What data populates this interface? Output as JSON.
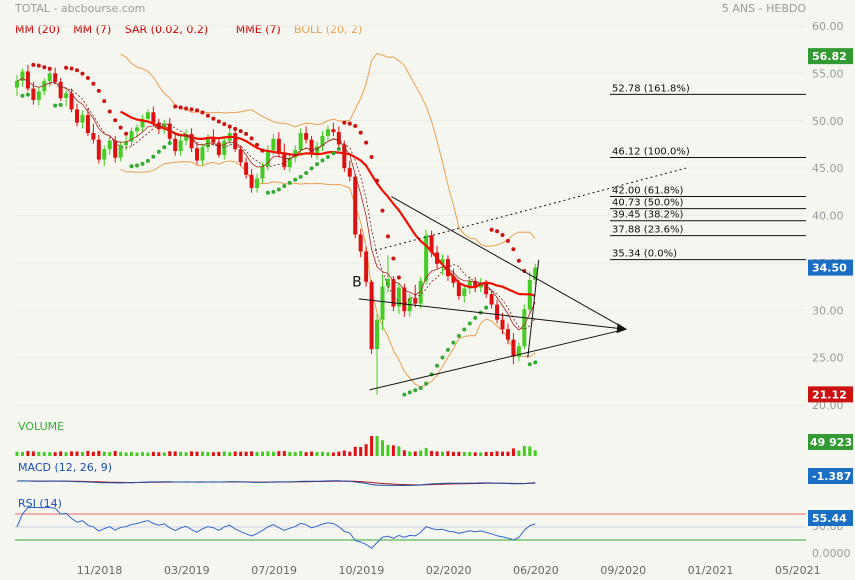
{
  "header": {
    "title": "TOTAL - abcbourse.com",
    "period": "5 ANS - HEBDO",
    "indicators": [
      {
        "label": "MM (20)",
        "color": "#cc0000"
      },
      {
        "label": "MM (7)",
        "color": "#cc0000"
      },
      {
        "label": "SAR (0.02, 0.2)",
        "color": "#cc0000"
      },
      {
        "label": "MME (7)",
        "color": "#cc0000"
      },
      {
        "label": "BOLL (20, 2)",
        "color": "#e8a050"
      }
    ]
  },
  "colors": {
    "background": "#f6f6f1",
    "up": "#44cc22",
    "down": "#dd1111",
    "ma": "#ee1100",
    "boll": "#e8a050",
    "sar_up": "#33aa33",
    "sar_down": "#cc1111",
    "price_badge": "#339933",
    "last_badge": "#1a6fc4",
    "low_badge": "#cc1111",
    "macd_line": "#1a4fb0",
    "macd_signal": "#b01a1a",
    "rsi_line": "#3366cc",
    "rsi_high": "#ee6666",
    "rsi_low": "#33aa33"
  },
  "chart_data": [
    {
      "type": "candlestick",
      "panel": "price",
      "ylim": [
        20,
        60
      ],
      "y_ticks": [
        "60.00",
        "55.00",
        "50.00",
        "45.00",
        "40.00",
        "35.00",
        "30.00",
        "25.00",
        "20.00"
      ],
      "x_ticks": [
        "11/2018",
        "03/2019",
        "07/2019",
        "10/2019",
        "02/2020",
        "06/2020",
        "09/2020",
        "01/2021",
        "05/2021"
      ],
      "xlim_weeks": [
        0,
        145
      ],
      "candles": [
        [
          0,
          53.5,
          54.8,
          52.6,
          54.2
        ],
        [
          1,
          54.2,
          55.5,
          53.6,
          55.2
        ],
        [
          2,
          55.2,
          55.9,
          53.1,
          53.4
        ],
        [
          3,
          53.4,
          54.1,
          51.7,
          52.2
        ],
        [
          4,
          52.2,
          53.6,
          51.6,
          53.1
        ],
        [
          5,
          53.1,
          54.5,
          52.7,
          54.2
        ],
        [
          6,
          54.2,
          55.3,
          53.6,
          55.0
        ],
        [
          7,
          55.0,
          55.6,
          53.9,
          54.1
        ],
        [
          8,
          54.1,
          54.5,
          52.1,
          52.4
        ],
        [
          9,
          52.4,
          53.3,
          51.5,
          52.9
        ],
        [
          10,
          52.9,
          53.4,
          50.9,
          51.2
        ],
        [
          11,
          51.2,
          51.8,
          49.4,
          49.8
        ],
        [
          12,
          49.8,
          51.1,
          49.2,
          50.6
        ],
        [
          13,
          50.6,
          51.3,
          48.4,
          48.7
        ],
        [
          14,
          48.7,
          49.7,
          47.6,
          48.0
        ],
        [
          15,
          48.0,
          48.5,
          45.5,
          45.9
        ],
        [
          16,
          45.9,
          47.4,
          45.2,
          47.0
        ],
        [
          17,
          47.0,
          48.3,
          46.4,
          47.9
        ],
        [
          18,
          47.9,
          48.4,
          45.6,
          46.1
        ],
        [
          19,
          46.1,
          47.8,
          45.7,
          47.4
        ],
        [
          20,
          47.4,
          48.4,
          46.9,
          47.8
        ],
        [
          21,
          47.8,
          49.3,
          47.3,
          48.9
        ],
        [
          22,
          48.9,
          49.6,
          48.2,
          49.3
        ],
        [
          23,
          49.3,
          50.6,
          48.8,
          50.2
        ],
        [
          24,
          50.2,
          51.2,
          49.8,
          50.9
        ],
        [
          25,
          50.9,
          51.5,
          49.5,
          49.8
        ],
        [
          26,
          49.8,
          50.2,
          48.6,
          49.1
        ],
        [
          27,
          49.1,
          50.1,
          48.6,
          49.7
        ],
        [
          28,
          49.7,
          50.3,
          47.7,
          48.1
        ],
        [
          29,
          48.1,
          48.7,
          46.3,
          46.8
        ],
        [
          30,
          46.8,
          48.4,
          46.3,
          47.9
        ],
        [
          31,
          47.9,
          49.1,
          47.4,
          48.6
        ],
        [
          32,
          48.6,
          49.2,
          46.7,
          47.1
        ],
        [
          33,
          47.1,
          47.6,
          45.4,
          45.8
        ],
        [
          34,
          45.8,
          47.6,
          45.3,
          47.2
        ],
        [
          35,
          47.2,
          48.6,
          46.7,
          48.2
        ],
        [
          36,
          48.2,
          49.1,
          47.4,
          47.7
        ],
        [
          37,
          47.7,
          48.1,
          46.1,
          46.4
        ],
        [
          38,
          46.4,
          48.3,
          45.9,
          47.9
        ],
        [
          39,
          47.9,
          49.2,
          47.4,
          48.7
        ],
        [
          40,
          48.7,
          49.1,
          46.7,
          47.0
        ],
        [
          41,
          47.0,
          47.4,
          45.2,
          45.6
        ],
        [
          42,
          45.6,
          46.1,
          43.9,
          44.3
        ],
        [
          43,
          44.3,
          44.9,
          42.4,
          42.9
        ],
        [
          44,
          42.9,
          44.4,
          42.4,
          43.9
        ],
        [
          45,
          43.9,
          45.6,
          43.4,
          45.2
        ],
        [
          46,
          45.2,
          47.4,
          44.8,
          46.9
        ],
        [
          47,
          46.9,
          48.6,
          46.4,
          48.1
        ],
        [
          48,
          48.1,
          48.8,
          46.1,
          46.5
        ],
        [
          49,
          46.5,
          47.6,
          44.8,
          45.1
        ],
        [
          50,
          45.1,
          46.6,
          44.6,
          46.1
        ],
        [
          51,
          46.1,
          47.4,
          45.6,
          46.9
        ],
        [
          52,
          46.9,
          49.2,
          46.4,
          48.7
        ],
        [
          53,
          48.7,
          49.4,
          47.6,
          48.0
        ],
        [
          54,
          48.0,
          48.4,
          46.1,
          46.5
        ],
        [
          55,
          46.5,
          47.8,
          45.9,
          47.3
        ],
        [
          56,
          47.3,
          48.9,
          46.8,
          48.4
        ],
        [
          57,
          48.4,
          49.5,
          47.9,
          49.1
        ],
        [
          58,
          49.1,
          49.8,
          48.4,
          48.8
        ],
        [
          59,
          48.8,
          49.4,
          47.1,
          47.5
        ],
        [
          60,
          47.5,
          47.9,
          44.6,
          45.0
        ],
        [
          61,
          45.0,
          45.8,
          43.6,
          44.1
        ],
        [
          62,
          44.1,
          44.4,
          37.6,
          38.0
        ],
        [
          63,
          38.0,
          38.6,
          35.6,
          36.2
        ],
        [
          64,
          36.2,
          36.7,
          32.5,
          33.0
        ],
        [
          65,
          33.0,
          33.2,
          25.4,
          25.9
        ],
        [
          66,
          25.9,
          29.6,
          21.1,
          29.0
        ],
        [
          67,
          29.0,
          33.8,
          27.9,
          32.5
        ],
        [
          68,
          32.5,
          35.8,
          31.9,
          33.3
        ],
        [
          69,
          33.3,
          33.6,
          29.9,
          30.4
        ],
        [
          70,
          30.4,
          32.9,
          29.6,
          32.4
        ],
        [
          71,
          32.4,
          32.8,
          29.3,
          29.9
        ],
        [
          72,
          29.9,
          31.7,
          29.3,
          31.3
        ],
        [
          73,
          31.3,
          32.7,
          30.3,
          30.7
        ],
        [
          74,
          30.7,
          33.5,
          30.2,
          33.1
        ],
        [
          75,
          33.1,
          38.5,
          32.7,
          37.9
        ],
        [
          76,
          37.9,
          38.4,
          35.6,
          36.1
        ],
        [
          77,
          36.1,
          36.8,
          34.4,
          34.9
        ],
        [
          78,
          34.9,
          35.9,
          33.7,
          35.4
        ],
        [
          79,
          35.4,
          35.8,
          33.1,
          33.6
        ],
        [
          80,
          33.6,
          34.4,
          32.4,
          32.9
        ],
        [
          81,
          32.9,
          33.2,
          31.1,
          31.5
        ],
        [
          82,
          31.5,
          32.7,
          30.8,
          32.3
        ],
        [
          83,
          32.3,
          33.6,
          31.7,
          33.1
        ],
        [
          84,
          33.1,
          33.5,
          31.9,
          32.4
        ],
        [
          85,
          32.4,
          33.4,
          31.9,
          32.9
        ],
        [
          86,
          32.9,
          33.2,
          31.3,
          31.7
        ],
        [
          87,
          31.7,
          32.1,
          30.2,
          30.6
        ],
        [
          88,
          30.6,
          31.1,
          28.6,
          29.0
        ],
        [
          89,
          29.0,
          29.7,
          27.5,
          28.0
        ],
        [
          90,
          28.0,
          28.6,
          26.4,
          26.9
        ],
        [
          91,
          26.9,
          27.6,
          24.3,
          25.1
        ],
        [
          92,
          25.1,
          26.6,
          24.6,
          26.2
        ],
        [
          93,
          26.2,
          30.6,
          25.9,
          30.1
        ],
        [
          94,
          30.1,
          34.1,
          29.6,
          33.2
        ],
        [
          95,
          33.2,
          34.9,
          32.7,
          34.5
        ]
      ],
      "fibonacci": [
        {
          "label": "52.78  (161.8%)",
          "value": 52.78
        },
        {
          "label": "46.12  (100.0%)",
          "value": 46.12
        },
        {
          "label": "42.00  (61.8%)",
          "value": 42.0
        },
        {
          "label": "40.73  (50.0%)",
          "value": 40.73
        },
        {
          "label": "39.45  (38.2%)",
          "value": 39.45
        },
        {
          "label": "37.88  (23.6%)",
          "value": 37.88
        },
        {
          "label": "35.34  (0.0%)",
          "value": 35.34
        }
      ],
      "trendlines": [
        {
          "points": [
            [
              69,
              42.0
            ],
            [
              112,
              28.0
            ]
          ],
          "style": "solid"
        },
        {
          "points": [
            [
              65,
              21.6
            ],
            [
              112,
              28.0
            ]
          ],
          "style": "solid"
        },
        {
          "points": [
            [
              63,
              31.2
            ],
            [
              112,
              28.0
            ]
          ],
          "style": "arrow"
        },
        {
          "points": [
            [
              66,
              36.3
            ],
            [
              123,
              45.0
            ]
          ],
          "style": "dotted"
        },
        {
          "points": [
            [
              94,
              25.0
            ],
            [
              96,
              35.3
            ]
          ],
          "style": "solid"
        }
      ],
      "annotations": [
        {
          "text": "B",
          "x": 61.8,
          "y": 32.5
        }
      ],
      "price_badges": [
        {
          "value": "56.82",
          "y": 56.82,
          "kind": "price"
        },
        {
          "value": "34.50",
          "y": 34.5,
          "kind": "last"
        },
        {
          "value": "21.12",
          "y": 21.12,
          "kind": "low"
        }
      ]
    },
    {
      "type": "bar",
      "panel": "volume",
      "title": "VOLUME",
      "badge": "49 923K"
    },
    {
      "type": "line",
      "panel": "macd",
      "title": "MACD (12, 26, 9)",
      "badge": "-1.387"
    },
    {
      "type": "line",
      "panel": "rsi",
      "title": "RSI (14)",
      "ylim": [
        0,
        100
      ],
      "levels": [
        70,
        30
      ],
      "y_ticks": [
        "50.00",
        "0.0000"
      ],
      "badge": "55.44"
    }
  ]
}
